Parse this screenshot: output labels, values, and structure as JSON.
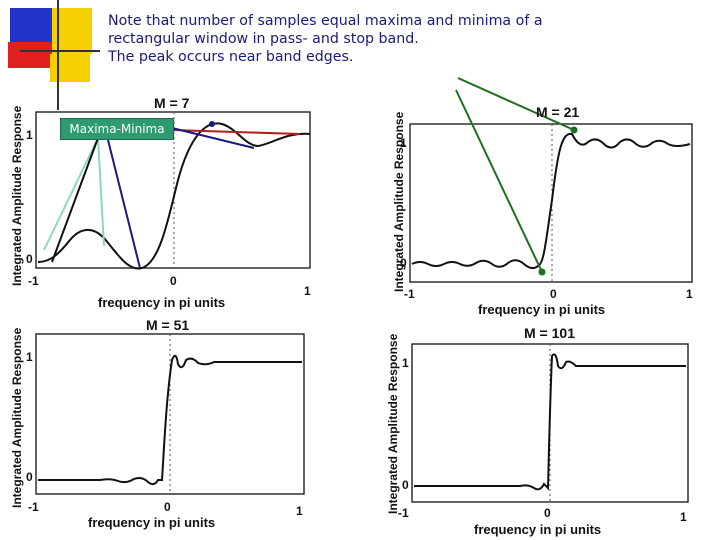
{
  "note": {
    "line1": "Note that number of samples  equal   maxima and minima of a",
    "line2": "rectangular window in pass- and  stop band.",
    "line3": "The peak occurs near band edges."
  },
  "callout": {
    "label": "Maxima-Minima"
  },
  "plots": [
    {
      "title": "M = 7",
      "ylabel": "Integrated Amplitude Response",
      "xlabel": "frequency in pi units",
      "xticks": [
        "-1",
        "0",
        "1"
      ],
      "yticks": [
        "0",
        "1"
      ]
    },
    {
      "title": "M = 21",
      "ylabel": "Integrated Amplitude Response",
      "xlabel": "frequency in pi units",
      "xticks": [
        "-1",
        "0",
        "1"
      ],
      "yticks": [
        "0",
        "1"
      ]
    },
    {
      "title": "M = 51",
      "ylabel": "Integrated Amplitude Response",
      "xlabel": "frequency in pi units",
      "xticks": [
        "-1",
        "0",
        "1"
      ],
      "yticks": [
        "0",
        "1"
      ]
    },
    {
      "title": "M = 101",
      "ylabel": "Integrated Amplitude Response",
      "xlabel": "frequency in pi units",
      "xticks": [
        "-1",
        "0",
        "1"
      ],
      "yticks": [
        "0",
        "1"
      ]
    }
  ],
  "colors": {
    "text": "#1a1a7a",
    "callout": "#2e9a70",
    "deco_blue": "#2233cc",
    "deco_yellow": "#f5d000",
    "deco_red": "#e02020"
  }
}
